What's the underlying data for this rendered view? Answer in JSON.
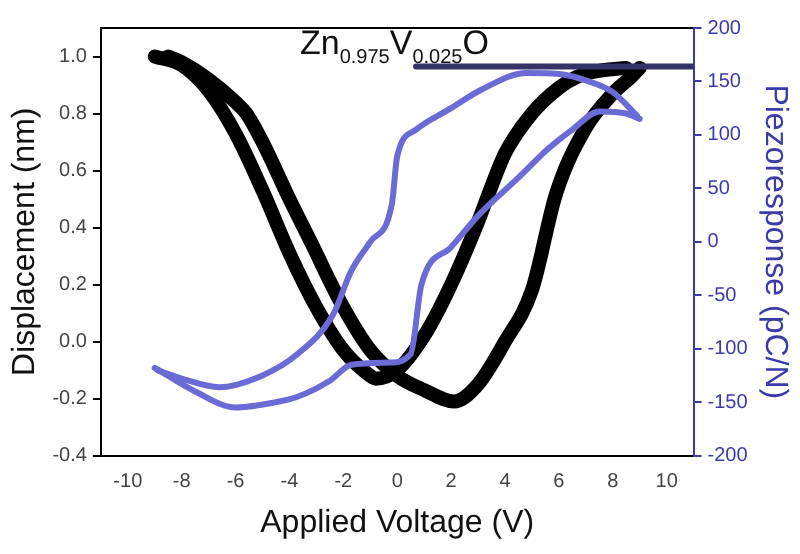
{
  "chart_data": {
    "type": "line",
    "xlabel": "Applied Voltage (V)",
    "ylabel": "Displacement (nm)",
    "y2label": "Piezoresponse (pC/N)",
    "annotations": [
      "Zn$_{0.975}$V$_{0.025}$O"
    ],
    "xlim": [
      -11,
      11
    ],
    "xticks": [
      -10,
      -8,
      -6,
      -4,
      -2,
      0,
      2,
      4,
      6,
      8,
      10
    ],
    "ylim": [
      -0.4,
      1.1
    ],
    "yticks": [
      -0.4,
      -0.2,
      {
        "value": 0,
        "label": "0.0"
      },
      0.2,
      0.4,
      0.6,
      0.8,
      {
        "value": 1,
        "label": "1.0"
      }
    ],
    "y2lim": [
      -200,
      200
    ],
    "y2ticks": [
      -200,
      -150,
      -100,
      -50,
      0,
      50,
      100,
      150,
      200
    ],
    "grid": false,
    "legend": false,
    "line_style": "solid",
    "series": [
      {
        "color": "#000000",
        "x": [
          -9,
          -8,
          -7,
          -6,
          -5,
          -4,
          -3,
          -2,
          -1,
          -0.8,
          0,
          1,
          1.9,
          3,
          3.4,
          4,
          5,
          6,
          6.7,
          7.5,
          8.5
        ],
        "values": [
          1.0,
          0.97,
          0.88,
          0.73,
          0.53,
          0.31,
          0.12,
          -0.03,
          -0.12,
          -0.13,
          -0.1,
          0.02,
          0.18,
          0.42,
          0.52,
          0.66,
          0.8,
          0.89,
          0.93,
          0.95,
          0.96
        ]
      },
      {
        "color": "#000000",
        "x": [
          -8.5,
          -8,
          -7,
          -6,
          -5.6,
          -5,
          -4,
          -3,
          -2.7,
          -2,
          -1,
          0,
          1,
          2.1,
          3,
          4,
          5,
          5.9,
          7,
          8,
          8.7,
          9
        ],
        "values": [
          1.0,
          0.98,
          0.92,
          0.84,
          0.8,
          0.7,
          0.5,
          0.31,
          0.25,
          0.12,
          -0.03,
          -0.12,
          -0.17,
          -0.21,
          -0.15,
          0.0,
          0.18,
          0.52,
          0.75,
          0.87,
          0.93,
          0.96
        ]
      },
      {
        "color": "#6b6bd6",
        "axis": "y2",
        "x": [
          -9,
          -7.5,
          -6,
          -4.5,
          -3.7,
          -2.5,
          -1.7,
          -0.3,
          0.5,
          0.9,
          2,
          3.1,
          4.5,
          5.6,
          6.5,
          7.5,
          8.5,
          9
        ],
        "values": [
          -118,
          -140,
          -155,
          -150,
          -145,
          -130,
          -115,
          -113,
          -105,
          -40,
          -5,
          27,
          60,
          87,
          105,
          122,
          120,
          115
        ]
      },
      {
        "color": "#6b6bd6",
        "axis": "y2",
        "x": [
          8.9,
          8,
          7,
          6,
          4.8,
          3.1,
          2,
          0.7,
          0,
          -0.2,
          -1,
          -1.7,
          -2.4,
          -3.7,
          -5,
          -6.6,
          -8,
          -8.9
        ],
        "values": [
          118,
          140,
          151,
          157,
          158,
          142,
          125,
          105,
          80,
          35,
          0,
          -27,
          -69,
          -105,
          -125,
          -136,
          -128,
          -120
        ]
      },
      {
        "color": "#333366",
        "axis": "y2",
        "x": [
          0.7,
          11
        ],
        "values": [
          164,
          164
        ]
      }
    ]
  }
}
